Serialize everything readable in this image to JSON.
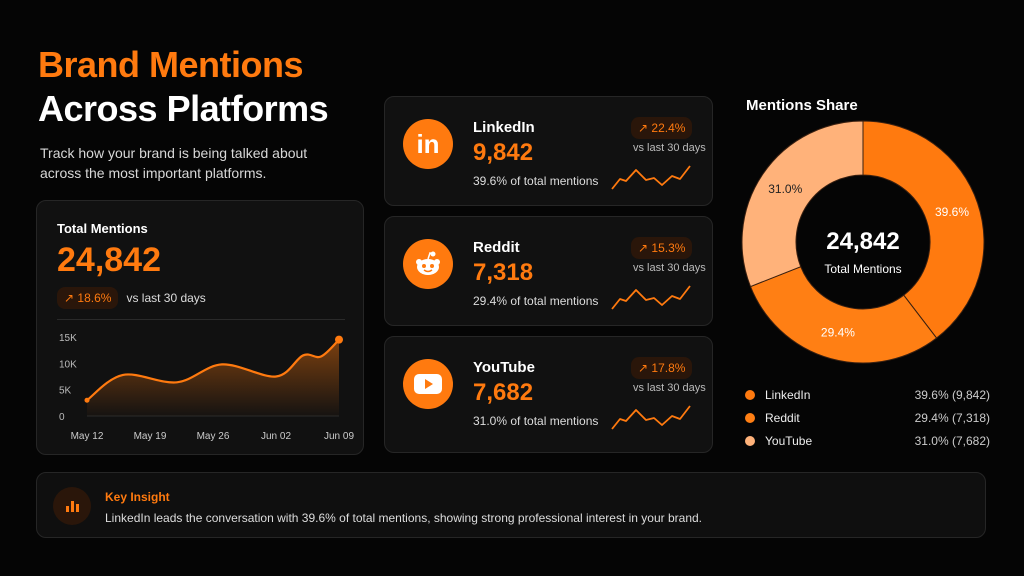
{
  "header": {
    "title_line1": "Brand Mentions",
    "title_line2": "Across Platforms",
    "subtitle": "Track how your brand is being talked about across the most important platforms."
  },
  "total_card": {
    "label": "Total Mentions",
    "value": "24,842",
    "change": "18.6%",
    "change_icon": "trend-up-icon",
    "vs": "vs last 30 days"
  },
  "platforms": [
    {
      "name": "LinkedIn",
      "value": "9,842",
      "share": "39.6% of total mentions",
      "change": "22.4%",
      "vs": "vs last 30 days",
      "icon": "linkedin-icon"
    },
    {
      "name": "Reddit",
      "value": "7,318",
      "share": "29.4% of total mentions",
      "change": "15.3%",
      "vs": "vs last 30 days",
      "icon": "reddit-icon"
    },
    {
      "name": "YouTube",
      "value": "7,682",
      "share": "31.0% of total mentions",
      "change": "17.8%",
      "vs": "vs last 30 days",
      "icon": "youtube-icon"
    }
  ],
  "donut": {
    "title": "Mentions Share",
    "center_value": "24,842",
    "center_label": "Total Mentions"
  },
  "insight": {
    "title": "Key Insight",
    "text": "LinkedIn leads the conversation with 39.6% of total mentions, showing strong professional interest in your brand.",
    "icon": "bar-chart-icon"
  },
  "colors": {
    "accent": "#ff7a0f",
    "linkedin": "#ff7a0f",
    "reddit": "#ff7f14",
    "youtube": "#ffb27a"
  },
  "chart_data": [
    {
      "type": "area",
      "title": "",
      "xlabel": "",
      "ylabel": "",
      "x_ticks": [
        "May 12",
        "May 19",
        "May 26",
        "Jun 02",
        "Jun 09"
      ],
      "y_ticks": [
        "0",
        "5K",
        "10K",
        "15K"
      ],
      "ylim": [
        0,
        15000
      ],
      "grid": false,
      "points": [
        [
          "May 12",
          3000
        ],
        [
          "May 16",
          7800
        ],
        [
          "May 22",
          6400
        ],
        [
          "May 27",
          9800
        ],
        [
          "Jun 02",
          7500
        ],
        [
          "Jun 05",
          11500
        ],
        [
          "Jun 07",
          11300
        ],
        [
          "Jun 09",
          14500
        ]
      ]
    },
    {
      "type": "pie",
      "title": "Mentions Share",
      "legend": "bottom",
      "categories": [
        "LinkedIn",
        "Reddit",
        "YouTube"
      ],
      "values": [
        39.6,
        29.4,
        31.0
      ],
      "counts": [
        9842,
        7318,
        7682
      ],
      "labels": [
        "39.6%",
        "29.4%",
        "31.0%"
      ],
      "legend_values": [
        "39.6% (9,842)",
        "29.4% (7,318)",
        "31.0% (7,682)"
      ]
    }
  ]
}
